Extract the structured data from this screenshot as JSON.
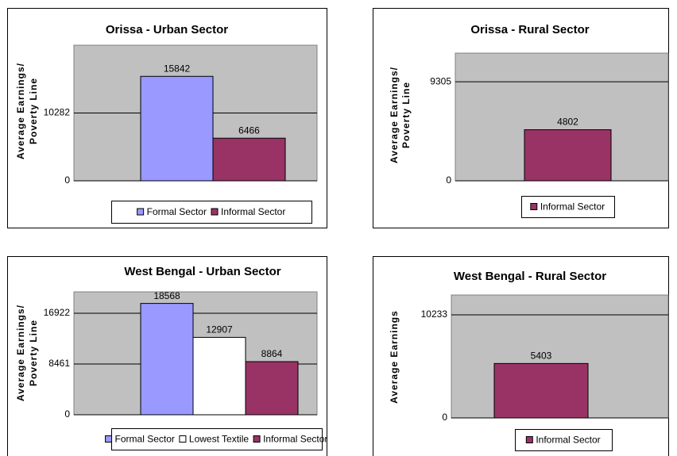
{
  "chart_data": [
    {
      "type": "bar",
      "title": "Orissa - Urban Sector",
      "ylabel": [
        "Average Earnings/",
        "Poverty Line"
      ],
      "ylim": [
        0,
        20564
      ],
      "yticks": [
        0,
        10282
      ],
      "grid": true,
      "series": [
        {
          "name": "Formal Sector",
          "color": "#9999ff",
          "values": [
            15842
          ]
        },
        {
          "name": "Informal Sector",
          "color": "#993366",
          "values": [
            6466
          ]
        }
      ]
    },
    {
      "type": "bar",
      "title": "Orissa - Rural Sector",
      "ylabel": [
        "Average Earnings/",
        "Poverty Line"
      ],
      "ylim": [
        0,
        12000
      ],
      "yticks": [
        0,
        9305
      ],
      "grid": true,
      "series": [
        {
          "name": "Informal Sector",
          "color": "#993366",
          "values": [
            4802
          ]
        }
      ]
    },
    {
      "type": "bar",
      "title": "West Bengal - Urban Sector",
      "ylabel": [
        "Average Earnings/",
        "Poverty Line"
      ],
      "ylim": [
        0,
        20500
      ],
      "yticks": [
        0,
        8461,
        16922
      ],
      "grid": true,
      "series": [
        {
          "name": "Formal Sector",
          "color": "#9999ff",
          "values": [
            18568
          ]
        },
        {
          "name": "Lowest Textile",
          "color": "#ffffff",
          "values": [
            12907
          ]
        },
        {
          "name": "Informal Sector",
          "color": "#993366",
          "values": [
            8864
          ]
        }
      ]
    },
    {
      "type": "bar",
      "title": "West Bengal - Rural Sector",
      "ylabel": [
        "Average Earnings"
      ],
      "ylim": [
        0,
        12200
      ],
      "yticks": [
        0,
        10233
      ],
      "grid": true,
      "series": [
        {
          "name": "Informal Sector",
          "color": "#993366",
          "values": [
            5403
          ]
        }
      ]
    }
  ]
}
